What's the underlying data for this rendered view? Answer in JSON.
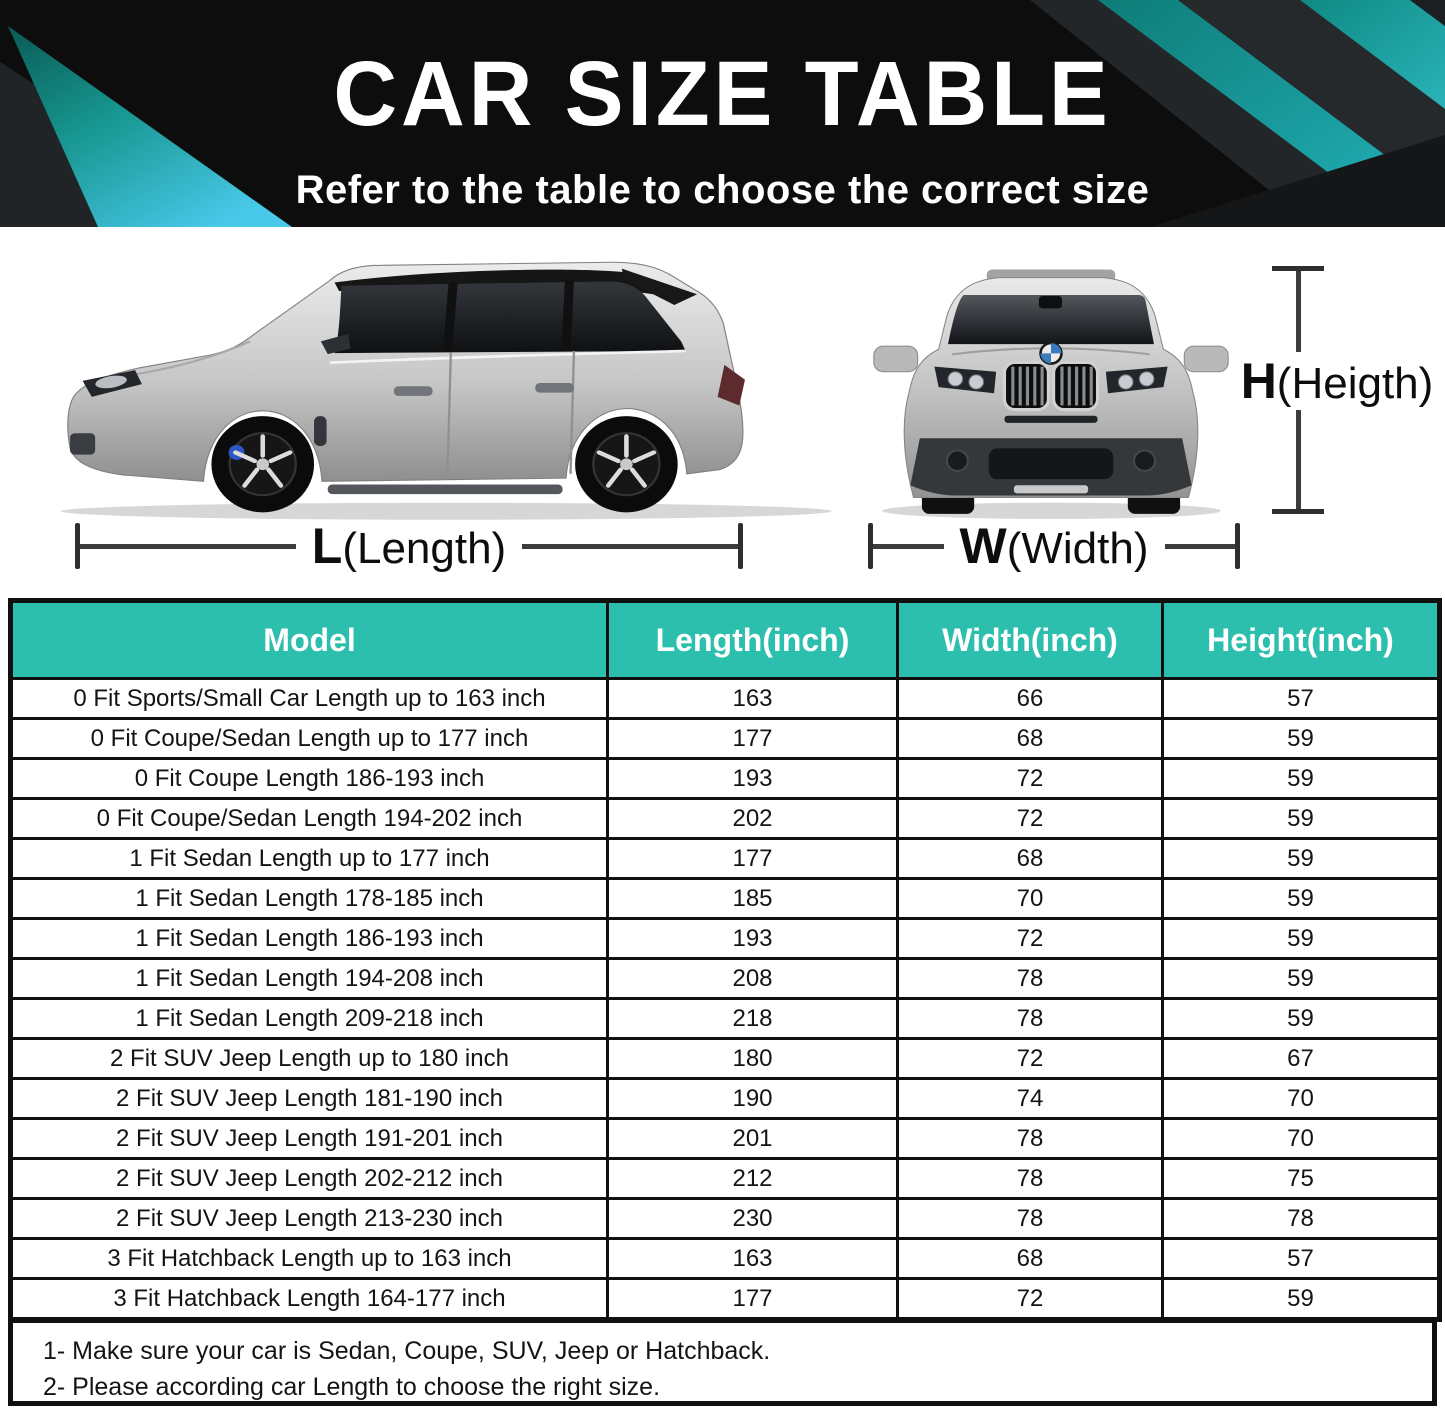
{
  "banner": {
    "title": "CAR SIZE TABLE",
    "subtitle": "Refer to the table to choose the correct size"
  },
  "dimensions": {
    "length": {
      "symbol": "L",
      "caption": "(Length)"
    },
    "width": {
      "symbol": "W",
      "caption": "(Width)"
    },
    "height": {
      "symbol": "H",
      "caption": "(Heigth)"
    }
  },
  "table": {
    "headers": [
      "Model",
      "Length(inch)",
      "Width(inch)",
      "Height(inch)"
    ],
    "rows": [
      [
        "0 Fit Sports/Small Car Length up to 163 inch",
        "163",
        "66",
        "57"
      ],
      [
        "0 Fit Coupe/Sedan Length up to 177 inch",
        "177",
        "68",
        "59"
      ],
      [
        "0 Fit Coupe Length 186-193 inch",
        "193",
        "72",
        "59"
      ],
      [
        "0 Fit Coupe/Sedan Length 194-202 inch",
        "202",
        "72",
        "59"
      ],
      [
        "1 Fit Sedan Length up to 177 inch",
        "177",
        "68",
        "59"
      ],
      [
        "1 Fit Sedan Length 178-185 inch",
        "185",
        "70",
        "59"
      ],
      [
        "1 Fit Sedan Length 186-193 inch",
        "193",
        "72",
        "59"
      ],
      [
        "1 Fit Sedan Length 194-208 inch",
        "208",
        "78",
        "59"
      ],
      [
        "1 Fit Sedan Length 209-218 inch",
        "218",
        "78",
        "59"
      ],
      [
        "2 Fit SUV Jeep Length up to 180 inch",
        "180",
        "72",
        "67"
      ],
      [
        "2 Fit SUV Jeep Length 181-190 inch",
        "190",
        "74",
        "70"
      ],
      [
        "2 Fit SUV Jeep Length 191-201 inch",
        "201",
        "78",
        "70"
      ],
      [
        "2 Fit SUV Jeep Length 202-212 inch",
        "212",
        "78",
        "75"
      ],
      [
        "2 Fit SUV Jeep Length 213-230 inch",
        "230",
        "78",
        "78"
      ],
      [
        "3 Fit Hatchback Length up to 163 inch",
        "163",
        "68",
        "57"
      ],
      [
        "3 Fit Hatchback Length 164-177 inch",
        "177",
        "72",
        "59"
      ]
    ]
  },
  "notes": [
    "1- Make sure your car is Sedan, Coupe, SUV, Jeep or Hatchback.",
    "2- Please according car Length to choose the right size."
  ],
  "colors": {
    "header_teal": "#2cbfad",
    "banner_black": "#0d0d0d",
    "accent_cyan_bright": "#49c9ea",
    "accent_teal_dark": "#0c665e",
    "table_border": "#101010"
  }
}
